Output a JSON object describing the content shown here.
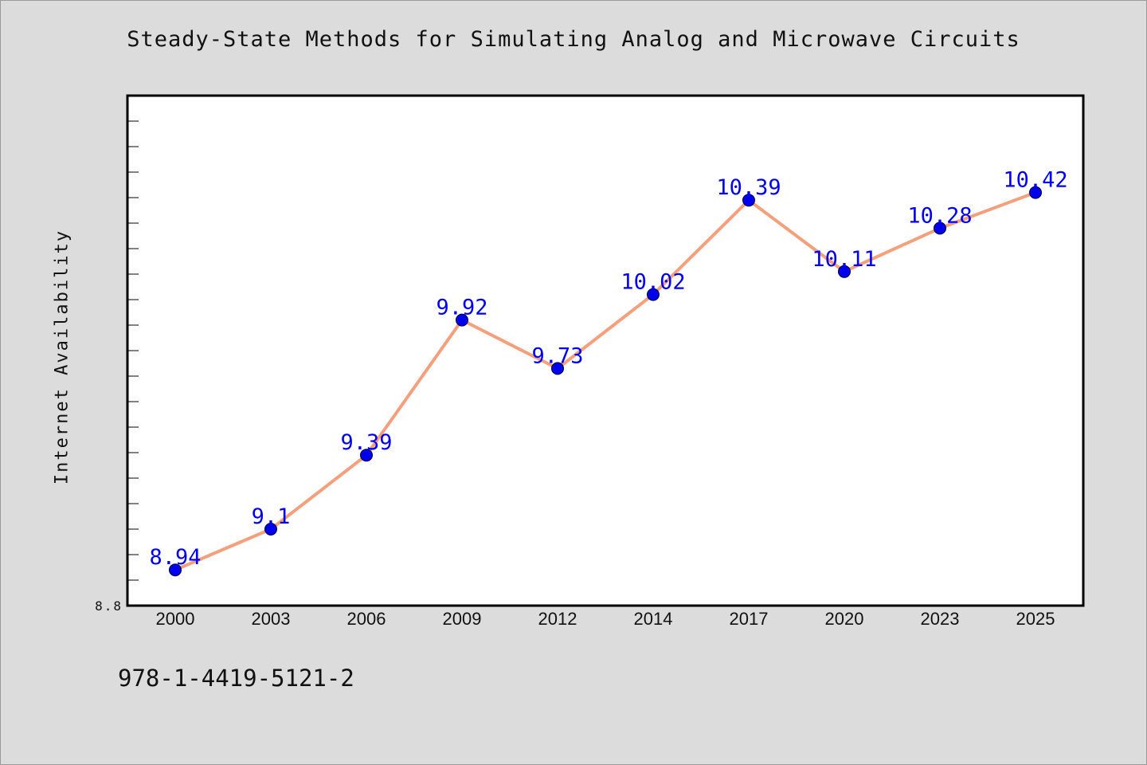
{
  "footer": {
    "code": "978-1-4419-5121-2"
  },
  "chart_data": {
    "type": "line",
    "title": "Steady-State Methods for Simulating Analog and Microwave Circuits",
    "xlabel": "",
    "ylabel": "Internet Availability",
    "categories": [
      "2000",
      "2003",
      "2006",
      "2009",
      "2012",
      "2014",
      "2017",
      "2020",
      "2023",
      "2025"
    ],
    "series": [
      {
        "values": [
          8.94,
          9.1,
          9.39,
          9.92,
          9.73,
          10.02,
          10.39,
          10.11,
          10.28,
          10.42
        ]
      }
    ],
    "data_labels": [
      "8.94",
      "9.1",
      "9.39",
      "9.92",
      "9.73",
      "10.02",
      "10.39",
      "10.11",
      "10.28",
      "10.42"
    ],
    "ylim": [
      8.8,
      10.8
    ],
    "y_tick_labels": [
      "8.8"
    ],
    "grid": false,
    "legend": "none",
    "colors": {
      "line": "#f4a07c",
      "marker": "#0000ee",
      "label": "#0000ee",
      "frame": "#000000",
      "plot_bg": "#ffffff",
      "page_bg": "#dcdcdc"
    }
  }
}
